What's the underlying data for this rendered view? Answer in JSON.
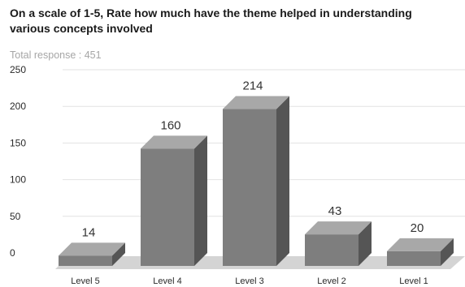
{
  "title": "On a scale of 1-5, Rate how much have the theme helped in understanding various concepts involved",
  "subtitle": "Total response : 451",
  "colors": {
    "bar_front": "#7e7e7e",
    "bar_top": "#a8a8a8",
    "bar_side": "#555555",
    "floor": "#d4d4d4",
    "grid": "#e2e2e2"
  },
  "chart_data": {
    "type": "bar",
    "title": "On a scale of 1-5, Rate how much have the theme helped in understanding various concepts involved",
    "subtitle": "Total response : 451",
    "categories": [
      "Level 5",
      "Level 4",
      "Level 3",
      "Level 2",
      "Level 1"
    ],
    "values": [
      14,
      160,
      214,
      43,
      20
    ],
    "yticks": [
      0,
      50,
      100,
      150,
      200,
      250
    ],
    "ylim": [
      0,
      250
    ],
    "grid": true,
    "legend": "none",
    "style": "3d"
  }
}
